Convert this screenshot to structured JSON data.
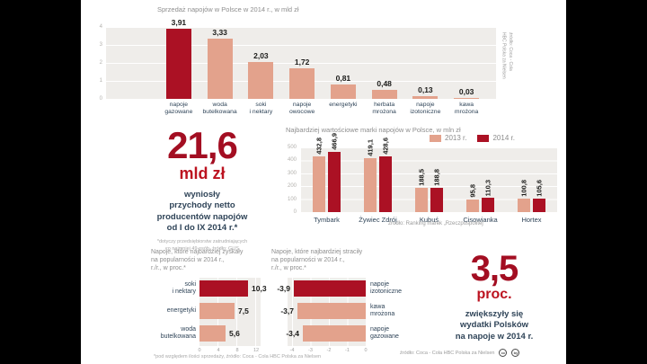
{
  "colors": {
    "accent_dark": "#ab1124",
    "accent_light": "#e3a28c",
    "big_number_red": "#a30e22",
    "unit_red": "#bc1320",
    "navy_text": "#2f4458",
    "gray_text": "#8e8e8e",
    "panel_bg": "#efedea"
  },
  "top_chart": {
    "title": "Sprzedaż napojów w Polsce w 2014 r., w mld zł",
    "y_ticks": [
      "4",
      "3",
      "2",
      "1",
      "0"
    ],
    "bars": [
      {
        "label": [
          "napoje",
          "gazowane"
        ],
        "value": 3.91,
        "display": "3,91",
        "highlight": true
      },
      {
        "label": [
          "woda",
          "butelkowana"
        ],
        "value": 3.33,
        "display": "3,33",
        "highlight": false
      },
      {
        "label": [
          "soki",
          "i nektary"
        ],
        "value": 2.03,
        "display": "2,03",
        "highlight": false
      },
      {
        "label": [
          "napoje",
          "owocowe"
        ],
        "value": 1.72,
        "display": "1,72",
        "highlight": false
      },
      {
        "label": [
          "energetyki"
        ],
        "value": 0.81,
        "display": "0,81",
        "highlight": false
      },
      {
        "label": [
          "herbata",
          "mrożona"
        ],
        "value": 0.48,
        "display": "0,48",
        "highlight": false
      },
      {
        "label": [
          "napoje",
          "izotoniczne"
        ],
        "value": 0.13,
        "display": "0,13",
        "highlight": false
      },
      {
        "label": [
          "kawa",
          "mrożona"
        ],
        "value": 0.03,
        "display": "0,03",
        "highlight": false
      }
    ],
    "source_vertical": [
      "źródło: Coca - Cola",
      "HBC Polska za Nielsen"
    ]
  },
  "revenue_block": {
    "big": "21,6",
    "unit": "mld zł",
    "lines": [
      "wyniosły",
      "przychody netto",
      "producentów napojów",
      "od I do IX 2014 r.*"
    ],
    "footnote": [
      "*dotyczy przedsiębiorstw zatrudniających",
      "co najmniej 49 osób, źródło: GUS"
    ]
  },
  "brands_chart": {
    "title": "Najbardziej wartościowe marki napojów w Polsce, w mln zł",
    "legend": [
      {
        "label": "2013 r."
      },
      {
        "label": "2014 r."
      }
    ],
    "y_ticks": [
      "500",
      "400",
      "300",
      "200",
      "100",
      "0"
    ],
    "groups": [
      {
        "name": "Tymbark",
        "v2013": 432.8,
        "d2013": "432,8",
        "v2014": 466.9,
        "d2014": "466,9"
      },
      {
        "name": "Żywiec Zdrój",
        "v2013": 419.1,
        "d2013": "419,1",
        "v2014": 428.6,
        "d2014": "428,6"
      },
      {
        "name": "Kubuś",
        "v2013": 188.5,
        "d2013": "188,5",
        "v2014": 188.8,
        "d2014": "188,8"
      },
      {
        "name": "Cisowianka",
        "v2013": 95.8,
        "d2013": "95,8",
        "v2014": 110.3,
        "d2014": "110,3"
      },
      {
        "name": "Hortex",
        "v2013": 100.8,
        "d2013": "100,8",
        "v2014": 105.6,
        "d2014": "105,6"
      }
    ],
    "source": "źródło: Ranking marek „Rzeczpospolitej”"
  },
  "gains_chart": {
    "title": [
      "Napoje, które najbardziej zyskały",
      "na popularności w 2014 r.,",
      "r./r., w proc.*"
    ],
    "bars": [
      {
        "label": [
          "soki",
          "i nektary"
        ],
        "value": 10.3,
        "display": "10,3",
        "highlight": true
      },
      {
        "label": [
          "energetyki"
        ],
        "value": 7.5,
        "display": "7,5",
        "highlight": false
      },
      {
        "label": [
          "woda",
          "butelkowana"
        ],
        "value": 5.6,
        "display": "5,6",
        "highlight": false
      }
    ],
    "x_ticks": [
      "0",
      "4",
      "8",
      "12"
    ],
    "footnote": "*pod względem ilości sprzedaży, źródło: Coca - Cola HBC Polska za Nielsen"
  },
  "losses_chart": {
    "title": [
      "Napoje, które najbardziej straciły",
      "na popularności w 2014 r.,",
      "r./r., w proc.*"
    ],
    "bars": [
      {
        "label": [
          "napoje",
          "izotoniczne"
        ],
        "value": -3.9,
        "display": "-3,9",
        "highlight": true
      },
      {
        "label": [
          "kawa",
          "mrożona"
        ],
        "value": -3.7,
        "display": "-3,7",
        "highlight": false
      },
      {
        "label": [
          "napoje",
          "gazowane"
        ],
        "value": -3.4,
        "display": "-3,4",
        "highlight": false
      }
    ],
    "x_ticks": [
      "-4",
      "-3",
      "-2",
      "-1",
      "0"
    ]
  },
  "spend_block": {
    "big": "3,5",
    "unit": "proc.",
    "lines": [
      "zwiększyły się",
      "wydatki Polsków",
      "na napoje w 2014 r."
    ]
  },
  "footer": {
    "source": "źródło: Coca - Cola HBC Polska za Nielsen",
    "cc_icons": [
      "cc",
      "by"
    ]
  },
  "chart_data": [
    {
      "type": "bar",
      "title": "Sprzedaż napojów w Polsce w 2014 r., w mld zł",
      "categories": [
        "napoje gazowane",
        "woda butelkowana",
        "soki i nektary",
        "napoje owocowe",
        "energetyki",
        "herbata mrożona",
        "napoje izotoniczne",
        "kawa mrożona"
      ],
      "values": [
        3.91,
        3.33,
        2.03,
        1.72,
        0.81,
        0.48,
        0.13,
        0.03
      ],
      "xlabel": "",
      "ylabel": "",
      "ylim": [
        0,
        4
      ],
      "grid": true
    },
    {
      "type": "bar",
      "title": "Najbardziej wartościowe marki napojów w Polsce, w mln zł",
      "categories": [
        "Tymbark",
        "Żywiec Zdrój",
        "Kubuś",
        "Cisowianka",
        "Hortex"
      ],
      "series": [
        {
          "name": "2013 r.",
          "values": [
            432.8,
            419.1,
            188.5,
            95.8,
            100.8
          ]
        },
        {
          "name": "2014 r.",
          "values": [
            466.9,
            428.6,
            188.8,
            110.3,
            105.6
          ]
        }
      ],
      "ylim": [
        0,
        500
      ],
      "grid": true,
      "legend_position": "top-right"
    },
    {
      "type": "bar",
      "orientation": "horizontal",
      "title": "Napoje, które najbardziej zyskały na popularności w 2014 r., r./r., w proc.*",
      "categories": [
        "soki i nektary",
        "energetyki",
        "woda butelkowana"
      ],
      "values": [
        10.3,
        7.5,
        5.6
      ],
      "xlim": [
        0,
        12
      ],
      "grid": true
    },
    {
      "type": "bar",
      "orientation": "horizontal",
      "title": "Napoje, które najbardziej straciły na popularności w 2014 r., r./r., w proc.*",
      "categories": [
        "napoje izotoniczne",
        "kawa mrożona",
        "napoje gazowane"
      ],
      "values": [
        -3.9,
        -3.7,
        -3.4
      ],
      "xlim": [
        -4,
        0
      ],
      "grid": true
    }
  ]
}
